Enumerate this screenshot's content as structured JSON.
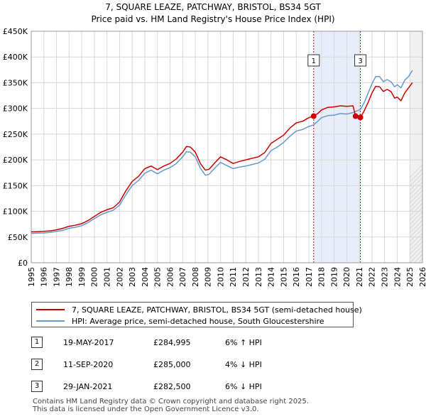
{
  "title_line1": "7, SQUARE LEAZE, PATCHWAY, BRISTOL, BS34 5GT",
  "title_line2": "Price paid vs. HM Land Registry's House Price Index (HPI)",
  "chart_data": {
    "type": "line",
    "xlim": [
      1995,
      2026
    ],
    "ylim": [
      0,
      450000
    ],
    "y_ticks": [
      0,
      50000,
      100000,
      150000,
      200000,
      250000,
      300000,
      350000,
      400000,
      450000
    ],
    "y_tick_labels": [
      "£0",
      "£50K",
      "£100K",
      "£150K",
      "£200K",
      "£250K",
      "£300K",
      "£350K",
      "£400K",
      "£450K"
    ],
    "x_ticks": [
      1995,
      1996,
      1997,
      1998,
      1999,
      2000,
      2001,
      2002,
      2003,
      2004,
      2005,
      2006,
      2007,
      2008,
      2009,
      2010,
      2011,
      2012,
      2013,
      2014,
      2015,
      2016,
      2017,
      2018,
      2019,
      2020,
      2021,
      2022,
      2023,
      2024,
      2025,
      2026
    ],
    "x_tick_labels": [
      "1995",
      "1996",
      "1997",
      "1998",
      "1999",
      "2000",
      "2001",
      "2002",
      "2003",
      "2004",
      "2005",
      "2006",
      "2007",
      "2008",
      "2009",
      "2010",
      "2011",
      "2012",
      "2013",
      "2014",
      "2015",
      "2016",
      "2017",
      "2018",
      "2019",
      "2020",
      "2021",
      "2022",
      "2023",
      "2024",
      "2025",
      "2026"
    ],
    "shaded_range": [
      2017.38,
      2021.08
    ],
    "forecast_start": 2025.0,
    "series": [
      {
        "name": "7, SQUARE LEAZE, PATCHWAY, BRISTOL, BS34 5GT (semi-detached house)",
        "color": "#cc0000",
        "x": [
          1995.0,
          1995.5,
          1996.0,
          1996.5,
          1997.0,
          1997.5,
          1998.0,
          1998.5,
          1999.0,
          1999.5,
          2000.0,
          2000.5,
          2001.0,
          2001.5,
          2002.0,
          2002.5,
          2003.0,
          2003.5,
          2004.0,
          2004.5,
          2005.0,
          2005.5,
          2006.0,
          2006.5,
          2007.0,
          2007.3,
          2007.6,
          2008.0,
          2008.4,
          2008.8,
          2009.1,
          2009.5,
          2010.0,
          2010.5,
          2011.0,
          2011.5,
          2012.0,
          2012.5,
          2013.0,
          2013.5,
          2014.0,
          2014.5,
          2015.0,
          2015.5,
          2016.0,
          2016.5,
          2017.0,
          2017.38,
          2017.7,
          2018.0,
          2018.5,
          2019.0,
          2019.5,
          2020.0,
          2020.5,
          2020.7,
          2021.08,
          2021.4,
          2021.7,
          2022.0,
          2022.3,
          2022.6,
          2022.9,
          2023.2,
          2023.5,
          2023.8,
          2024.0,
          2024.3,
          2024.6,
          2024.9,
          2025.2
        ],
        "values": [
          60000,
          60500,
          61000,
          62000,
          64000,
          67000,
          71000,
          73000,
          76000,
          82000,
          90000,
          98000,
          103000,
          107000,
          118000,
          140000,
          158000,
          168000,
          183000,
          188000,
          181000,
          188000,
          193000,
          202000,
          215000,
          226000,
          225000,
          215000,
          193000,
          180000,
          182000,
          193000,
          206000,
          200000,
          193000,
          197000,
          200000,
          203000,
          206000,
          214000,
          232000,
          240000,
          248000,
          262000,
          272000,
          275000,
          282000,
          284995,
          290000,
          297000,
          302000,
          303000,
          305000,
          304000,
          305000,
          285000,
          282500,
          296000,
          312000,
          330000,
          343000,
          342000,
          333000,
          337000,
          333000,
          320000,
          322000,
          315000,
          330000,
          340000,
          350000
        ]
      },
      {
        "name": "HPI: Average price, semi-detached house, South Gloucestershire",
        "color": "#6699cc",
        "x": [
          1995.0,
          1995.5,
          1996.0,
          1996.5,
          1997.0,
          1997.5,
          1998.0,
          1998.5,
          1999.0,
          1999.5,
          2000.0,
          2000.5,
          2001.0,
          2001.5,
          2002.0,
          2002.5,
          2003.0,
          2003.5,
          2004.0,
          2004.5,
          2005.0,
          2005.5,
          2006.0,
          2006.5,
          2007.0,
          2007.3,
          2007.6,
          2008.0,
          2008.4,
          2008.8,
          2009.1,
          2009.5,
          2010.0,
          2010.5,
          2011.0,
          2011.5,
          2012.0,
          2012.5,
          2013.0,
          2013.5,
          2014.0,
          2014.5,
          2015.0,
          2015.5,
          2016.0,
          2016.5,
          2017.0,
          2017.38,
          2017.7,
          2018.0,
          2018.5,
          2019.0,
          2019.5,
          2020.0,
          2020.5,
          2020.7,
          2021.08,
          2021.4,
          2021.7,
          2022.0,
          2022.3,
          2022.6,
          2022.9,
          2023.2,
          2023.5,
          2023.8,
          2024.0,
          2024.3,
          2024.6,
          2024.9,
          2025.2
        ],
        "values": [
          57000,
          57500,
          58000,
          59000,
          61000,
          63000,
          67000,
          69000,
          72000,
          78000,
          86000,
          93000,
          98000,
          102000,
          112000,
          132000,
          150000,
          160000,
          174000,
          180000,
          173000,
          180000,
          185000,
          193000,
          206000,
          216000,
          215000,
          206000,
          184000,
          170000,
          172000,
          183000,
          195000,
          189000,
          183000,
          186000,
          188000,
          191000,
          194000,
          201000,
          218000,
          225000,
          234000,
          246000,
          256000,
          259000,
          265000,
          268000,
          275000,
          282000,
          286000,
          287000,
          290000,
          289000,
          292000,
          294000,
          298000,
          312000,
          330000,
          348000,
          362000,
          362000,
          352000,
          356000,
          352000,
          342000,
          346000,
          340000,
          355000,
          362000,
          374000
        ]
      }
    ],
    "markers": [
      {
        "label": "1",
        "x": 2017.38,
        "y": 284995
      },
      {
        "label": "3",
        "x": 2021.08,
        "y": 282500
      }
    ],
    "dots": [
      {
        "x": 2017.38,
        "y": 284995
      },
      {
        "x": 2020.7,
        "y": 285000
      },
      {
        "x": 2021.08,
        "y": 282500
      }
    ]
  },
  "transactions": [
    {
      "num": "1",
      "date": "19-MAY-2017",
      "price": "£284,995",
      "hpi": "6% ↑ HPI"
    },
    {
      "num": "2",
      "date": "11-SEP-2020",
      "price": "£285,000",
      "hpi": "4% ↓ HPI"
    },
    {
      "num": "3",
      "date": "29-JAN-2021",
      "price": "£282,500",
      "hpi": "6% ↓ HPI"
    }
  ],
  "footer_line1": "Contains HM Land Registry data © Crown copyright and database right 2025.",
  "footer_line2": "This data is licensed under the Open Government Licence v3.0."
}
